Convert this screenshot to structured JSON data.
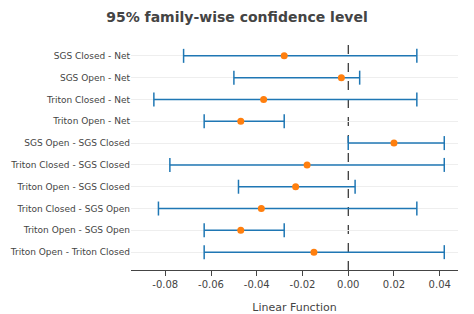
{
  "chart_data": {
    "type": "interval",
    "title": "95% family-wise confidence level",
    "xlabel": "Linear Function",
    "categories": [
      "SGS Closed - Net",
      "SGS Open - Net",
      "Triton Closed - Net",
      "Triton Open - Net",
      "SGS Open - SGS Closed",
      "Triton Closed - SGS Closed",
      "Triton Open - SGS Closed",
      "Triton Closed - SGS Open",
      "Triton Open - SGS Open",
      "Triton Open - Triton Closed"
    ],
    "values": [
      -0.028,
      -0.003,
      -0.037,
      -0.047,
      0.02,
      -0.018,
      -0.023,
      -0.038,
      -0.047,
      -0.015
    ],
    "lower": [
      -0.072,
      -0.05,
      -0.085,
      -0.063,
      0.0,
      -0.078,
      -0.048,
      -0.083,
      -0.063,
      -0.063
    ],
    "upper": [
      0.03,
      0.005,
      0.03,
      -0.028,
      0.042,
      0.042,
      0.003,
      0.03,
      -0.028,
      0.042
    ],
    "xlim": [
      -0.095,
      0.048
    ],
    "xticks": [
      -0.08,
      -0.06,
      -0.04,
      -0.02,
      {
        "value": 0.0,
        "label": "0.00"
      },
      0.02,
      0.04
    ],
    "vline": 0.0,
    "grid": "y"
  }
}
